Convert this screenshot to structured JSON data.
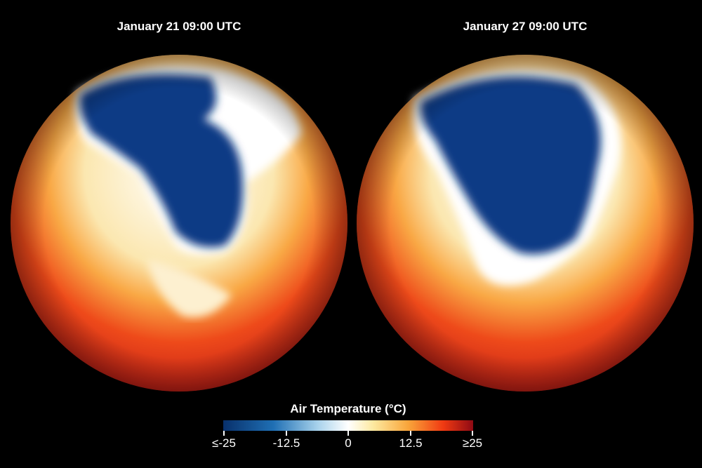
{
  "panels": [
    {
      "title": "January 21 09:00 UTC"
    },
    {
      "title": "January 27 09:00 UTC"
    }
  ],
  "legend": {
    "title": "Air Temperature (°C)",
    "ticks": [
      "≤-25",
      "-12.5",
      "0",
      "12.5",
      "≥25"
    ],
    "colors": [
      "#08306b",
      "#1f6fb4",
      "#ffffff",
      "#f9a53a",
      "#f03a12",
      "#8e0a14"
    ]
  }
}
